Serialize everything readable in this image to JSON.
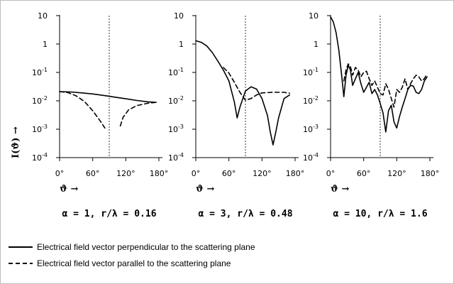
{
  "chart_data": {
    "type": "line",
    "ylabel": "I(ϑ) →",
    "yscale": "log",
    "ylim": [
      0.0001,
      10
    ],
    "y_tick_labels": [
      "10",
      "1",
      "10-1",
      "10-2",
      "10-3",
      "10-4"
    ],
    "y_tick_values": [
      10,
      1,
      0.1,
      0.01,
      0.001,
      0.0001
    ],
    "xlim": [
      0,
      180
    ],
    "x_tick_values": [
      0,
      60,
      120,
      180
    ],
    "x_tick_labels": [
      "0°",
      "60°",
      "120°",
      "180°"
    ],
    "xlabel": "ϑ →",
    "reference_line_x": 90,
    "legend": [
      {
        "style": "solid",
        "label": "Electrical field vector perpendicular to the scattering plane"
      },
      {
        "style": "dashed",
        "label": "Electrical field vector parallel to the scattering plane"
      }
    ],
    "panels": [
      {
        "title": "α = 1, r/λ = 0.16",
        "series": [
          {
            "style": "solid",
            "x": [
              0,
              20,
              40,
              60,
              80,
              100,
              120,
              140,
              160,
              175
            ],
            "y": [
              0.021,
              0.0205,
              0.019,
              0.0175,
              0.0155,
              0.0135,
              0.0118,
              0.0103,
              0.0092,
              0.0088
            ]
          },
          {
            "style": "dashed",
            "x": [
              0,
              15,
              30,
              45,
              60,
              75,
              82
            ],
            "y": [
              0.021,
              0.0195,
              0.015,
              0.0095,
              0.0045,
              0.0018,
              0.0011
            ]
          },
          {
            "style": "dashed",
            "x": [
              110,
              115,
              125,
              140,
              160,
              175
            ],
            "y": [
              0.0013,
              0.0026,
              0.0048,
              0.0068,
              0.0082,
              0.0088
            ]
          }
        ]
      },
      {
        "title": "α = 3, r/λ = 0.48",
        "series": [
          {
            "style": "solid",
            "x": [
              0,
              10,
              20,
              30,
              40,
              50,
              60,
              70,
              75,
              80,
              90,
              100,
              110,
              120,
              130,
              135,
              140,
              145,
              150,
              160,
              170
            ],
            "y": [
              1.3,
              1.15,
              0.85,
              0.5,
              0.25,
              0.12,
              0.05,
              0.009,
              0.0025,
              0.006,
              0.022,
              0.031,
              0.026,
              0.012,
              0.003,
              0.0008,
              0.00028,
              0.0008,
              0.0025,
              0.012,
              0.016
            ]
          },
          {
            "style": "dashed",
            "x": [
              50,
              60,
              70,
              80,
              90,
              100,
              110,
              120,
              140,
              160,
              170
            ],
            "y": [
              0.15,
              0.095,
              0.045,
              0.02,
              0.0105,
              0.012,
              0.016,
              0.019,
              0.02,
              0.02,
              0.0185
            ]
          }
        ]
      },
      {
        "title": "α = 10, r/λ = 1.6",
        "series": [
          {
            "style": "solid",
            "x": [
              0,
              5,
              10,
              15,
              20,
              24,
              28,
              32,
              36,
              40,
              45,
              50,
              55,
              60,
              65,
              70,
              75,
              80,
              85,
              90,
              95,
              100,
              105,
              110,
              115,
              120,
              125,
              130,
              135,
              140,
              145,
              150,
              155,
              160,
              165,
              170,
              175
            ],
            "y": [
              9,
              6,
              2.5,
              0.6,
              0.08,
              0.014,
              0.08,
              0.18,
              0.12,
              0.035,
              0.06,
              0.1,
              0.04,
              0.02,
              0.03,
              0.045,
              0.018,
              0.025,
              0.016,
              0.008,
              0.0038,
              0.0008,
              0.0045,
              0.007,
              0.0018,
              0.0011,
              0.0028,
              0.006,
              0.012,
              0.025,
              0.035,
              0.033,
              0.02,
              0.018,
              0.025,
              0.05,
              0.07
            ]
          },
          {
            "style": "dashed",
            "x": [
              24,
              28,
              32,
              36,
              40,
              45,
              50,
              55,
              60,
              65,
              70,
              75,
              80,
              85,
              90,
              95,
              100,
              105,
              110,
              115,
              120,
              125,
              130,
              135,
              140,
              145,
              150,
              155,
              160,
              165,
              170,
              175
            ],
            "y": [
              0.05,
              0.12,
              0.2,
              0.16,
              0.08,
              0.15,
              0.12,
              0.07,
              0.1,
              0.11,
              0.06,
              0.035,
              0.05,
              0.03,
              0.018,
              0.016,
              0.04,
              0.025,
              0.012,
              0.006,
              0.025,
              0.02,
              0.03,
              0.06,
              0.025,
              0.04,
              0.06,
              0.08,
              0.07,
              0.05,
              0.06,
              0.09
            ]
          }
        ]
      }
    ]
  }
}
